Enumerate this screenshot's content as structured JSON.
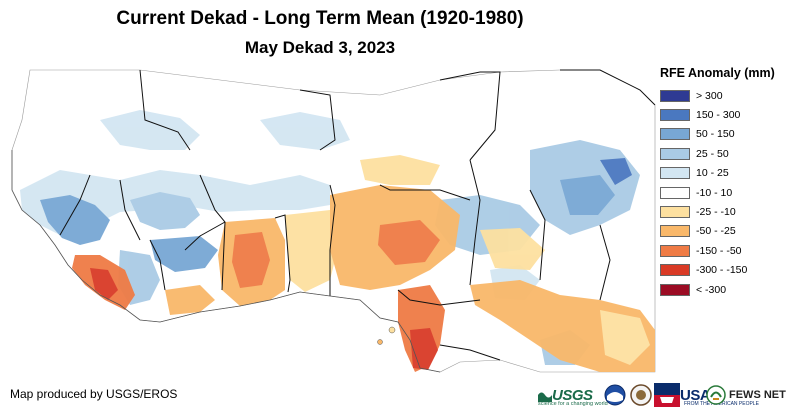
{
  "header": {
    "title": "Current Dekad - Long Term Mean (1920-1980)",
    "subtitle": "May Dekad 3, 2023"
  },
  "legend": {
    "title": "RFE Anomaly (mm)",
    "classes": [
      {
        "label": "> 300",
        "color": "#2e3a93"
      },
      {
        "label": "150 - 300",
        "color": "#4a78c0"
      },
      {
        "label": "50 - 150",
        "color": "#78a7d4"
      },
      {
        "label": "25 - 50",
        "color": "#aacbe5"
      },
      {
        "label": "10 - 25",
        "color": "#d3e6f2"
      },
      {
        "label": "-10 - 10",
        "color": "#ffffff"
      },
      {
        "label": "-25 - -10",
        "color": "#fde0a0"
      },
      {
        "label": "-50 - -25",
        "color": "#f9b86a"
      },
      {
        "label": "-150 - -50",
        "color": "#ef7b45"
      },
      {
        "label": "-300 - -150",
        "color": "#d93a26"
      },
      {
        "label": "< -300",
        "color": "#9b0c24"
      }
    ]
  },
  "footer": {
    "credit": "Map produced by USGS/EROS",
    "logos": {
      "usgs": "USGS",
      "usgs_tagline": "science for a changing world",
      "usaid": "USAID",
      "usaid_tagline": "FROM THE AMERICAN PEOPLE",
      "fews": "FEWS NET"
    }
  },
  "icons": [
    "usgs-logo-icon",
    "noaa-logo-icon",
    "doi-seal-icon",
    "usaid-logo-icon",
    "fews-net-logo-icon"
  ]
}
